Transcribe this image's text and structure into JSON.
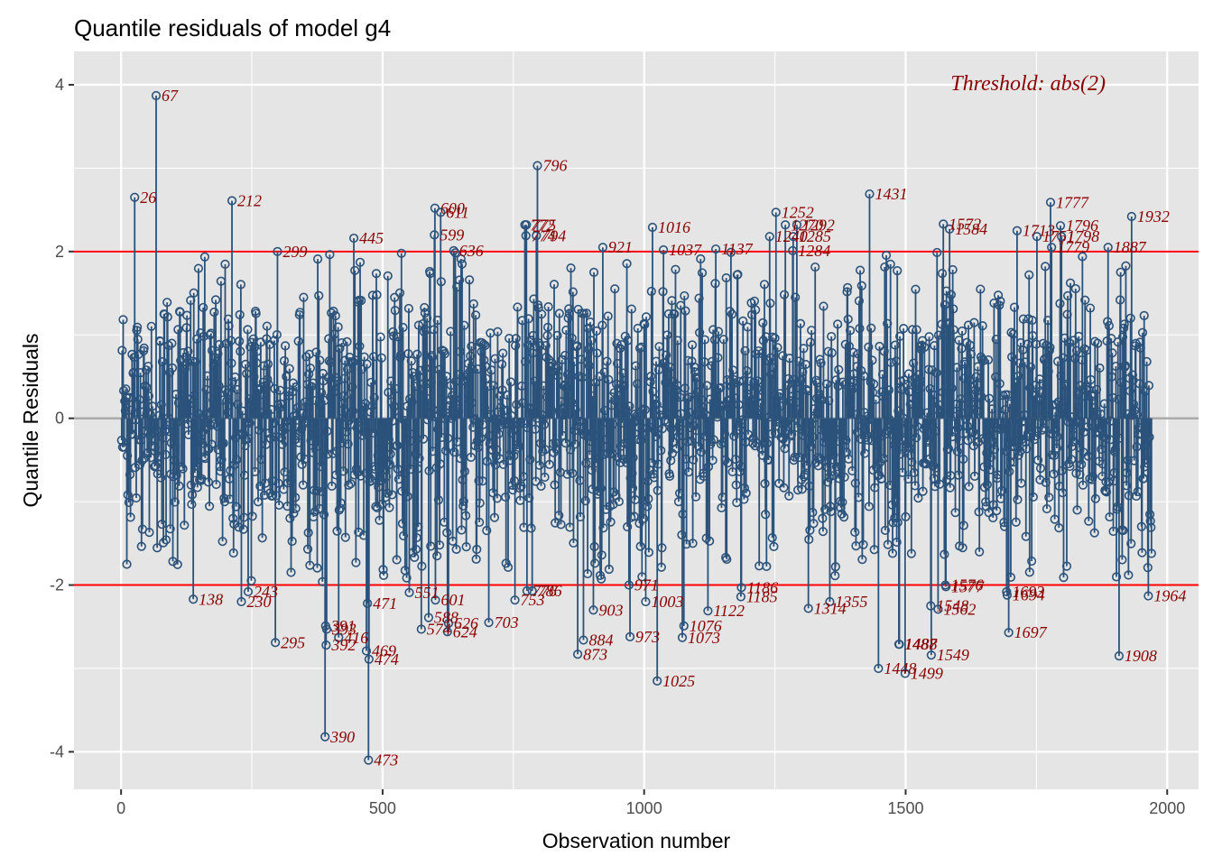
{
  "chart_data": {
    "type": "scatter",
    "subtype": "lollipop",
    "title": "Quantile residuals of model g4",
    "xlabel": "Observation number",
    "ylabel": "Quantile Residuals",
    "xlim": [
      -90,
      2060
    ],
    "ylim": [
      -4.45,
      4.4
    ],
    "x_ticks": [
      0,
      500,
      1000,
      1500,
      2000
    ],
    "y_ticks": [
      -4,
      -2,
      0,
      2,
      4
    ],
    "grid": true,
    "n_observations": 1970,
    "threshold": 2,
    "annotation": "Threshold: abs(2)",
    "colors": {
      "points": "#2b527a",
      "threshold_lines": "#ff0000",
      "zero_line": "#aaaaaa",
      "labels": "#8b0000",
      "panel": "#e5e5e5",
      "grid": "#ffffff"
    },
    "outliers": [
      {
        "obs": 26,
        "value": 2.65
      },
      {
        "obs": 67,
        "value": 3.87
      },
      {
        "obs": 212,
        "value": 2.61
      },
      {
        "obs": 299,
        "value": 2.0
      },
      {
        "obs": 445,
        "value": 2.16
      },
      {
        "obs": 599,
        "value": 2.2
      },
      {
        "obs": 600,
        "value": 2.52
      },
      {
        "obs": 611,
        "value": 2.47
      },
      {
        "obs": 636,
        "value": 2.01
      },
      {
        "obs": 772,
        "value": 2.32
      },
      {
        "obs": 774,
        "value": 2.19
      },
      {
        "obs": 775,
        "value": 2.32
      },
      {
        "obs": 794,
        "value": 2.19
      },
      {
        "obs": 796,
        "value": 3.03
      },
      {
        "obs": 921,
        "value": 2.05
      },
      {
        "obs": 1016,
        "value": 2.29
      },
      {
        "obs": 1037,
        "value": 2.02
      },
      {
        "obs": 1137,
        "value": 2.03
      },
      {
        "obs": 1240,
        "value": 2.18
      },
      {
        "obs": 1252,
        "value": 2.47
      },
      {
        "obs": 1270,
        "value": 2.32
      },
      {
        "obs": 1284,
        "value": 2.01
      },
      {
        "obs": 1285,
        "value": 2.18
      },
      {
        "obs": 1292,
        "value": 2.32
      },
      {
        "obs": 1431,
        "value": 2.69
      },
      {
        "obs": 1572,
        "value": 2.33
      },
      {
        "obs": 1584,
        "value": 2.27
      },
      {
        "obs": 1713,
        "value": 2.25
      },
      {
        "obs": 1751,
        "value": 2.18
      },
      {
        "obs": 1777,
        "value": 2.59
      },
      {
        "obs": 1779,
        "value": 2.05
      },
      {
        "obs": 1796,
        "value": 2.31
      },
      {
        "obs": 1798,
        "value": 2.18
      },
      {
        "obs": 1887,
        "value": 2.05
      },
      {
        "obs": 1932,
        "value": 2.42
      },
      {
        "obs": 138,
        "value": -2.17
      },
      {
        "obs": 230,
        "value": -2.2
      },
      {
        "obs": 243,
        "value": -2.08
      },
      {
        "obs": 295,
        "value": -2.69
      },
      {
        "obs": 390,
        "value": -3.82
      },
      {
        "obs": 391,
        "value": -2.49
      },
      {
        "obs": 392,
        "value": -2.72
      },
      {
        "obs": 393,
        "value": -2.53
      },
      {
        "obs": 416,
        "value": -2.63
      },
      {
        "obs": 469,
        "value": -2.79
      },
      {
        "obs": 471,
        "value": -2.22
      },
      {
        "obs": 473,
        "value": -4.1
      },
      {
        "obs": 474,
        "value": -2.89
      },
      {
        "obs": 551,
        "value": -2.09
      },
      {
        "obs": 574,
        "value": -2.53
      },
      {
        "obs": 588,
        "value": -2.39
      },
      {
        "obs": 601,
        "value": -2.18
      },
      {
        "obs": 624,
        "value": -2.56
      },
      {
        "obs": 626,
        "value": -2.46
      },
      {
        "obs": 703,
        "value": -2.45
      },
      {
        "obs": 753,
        "value": -2.18
      },
      {
        "obs": 776,
        "value": -2.07
      },
      {
        "obs": 786,
        "value": -2.07
      },
      {
        "obs": 873,
        "value": -2.83
      },
      {
        "obs": 884,
        "value": -2.66
      },
      {
        "obs": 903,
        "value": -2.3
      },
      {
        "obs": 971,
        "value": -2.0
      },
      {
        "obs": 973,
        "value": -2.62
      },
      {
        "obs": 1003,
        "value": -2.2
      },
      {
        "obs": 1025,
        "value": -3.15
      },
      {
        "obs": 1073,
        "value": -2.63
      },
      {
        "obs": 1076,
        "value": -2.49
      },
      {
        "obs": 1122,
        "value": -2.31
      },
      {
        "obs": 1185,
        "value": -2.14
      },
      {
        "obs": 1186,
        "value": -2.03
      },
      {
        "obs": 1314,
        "value": -2.28
      },
      {
        "obs": 1355,
        "value": -2.2
      },
      {
        "obs": 1448,
        "value": -3.0
      },
      {
        "obs": 1487,
        "value": -2.71
      },
      {
        "obs": 1488,
        "value": -2.71
      },
      {
        "obs": 1499,
        "value": -3.06
      },
      {
        "obs": 1548,
        "value": -2.25
      },
      {
        "obs": 1549,
        "value": -2.84
      },
      {
        "obs": 1562,
        "value": -2.29
      },
      {
        "obs": 1576,
        "value": -2.0
      },
      {
        "obs": 1577,
        "value": -2.02
      },
      {
        "obs": 1693,
        "value": -2.08
      },
      {
        "obs": 1694,
        "value": -2.12
      },
      {
        "obs": 1697,
        "value": -2.57
      },
      {
        "obs": 1908,
        "value": -2.85
      },
      {
        "obs": 1964,
        "value": -2.13
      }
    ]
  }
}
